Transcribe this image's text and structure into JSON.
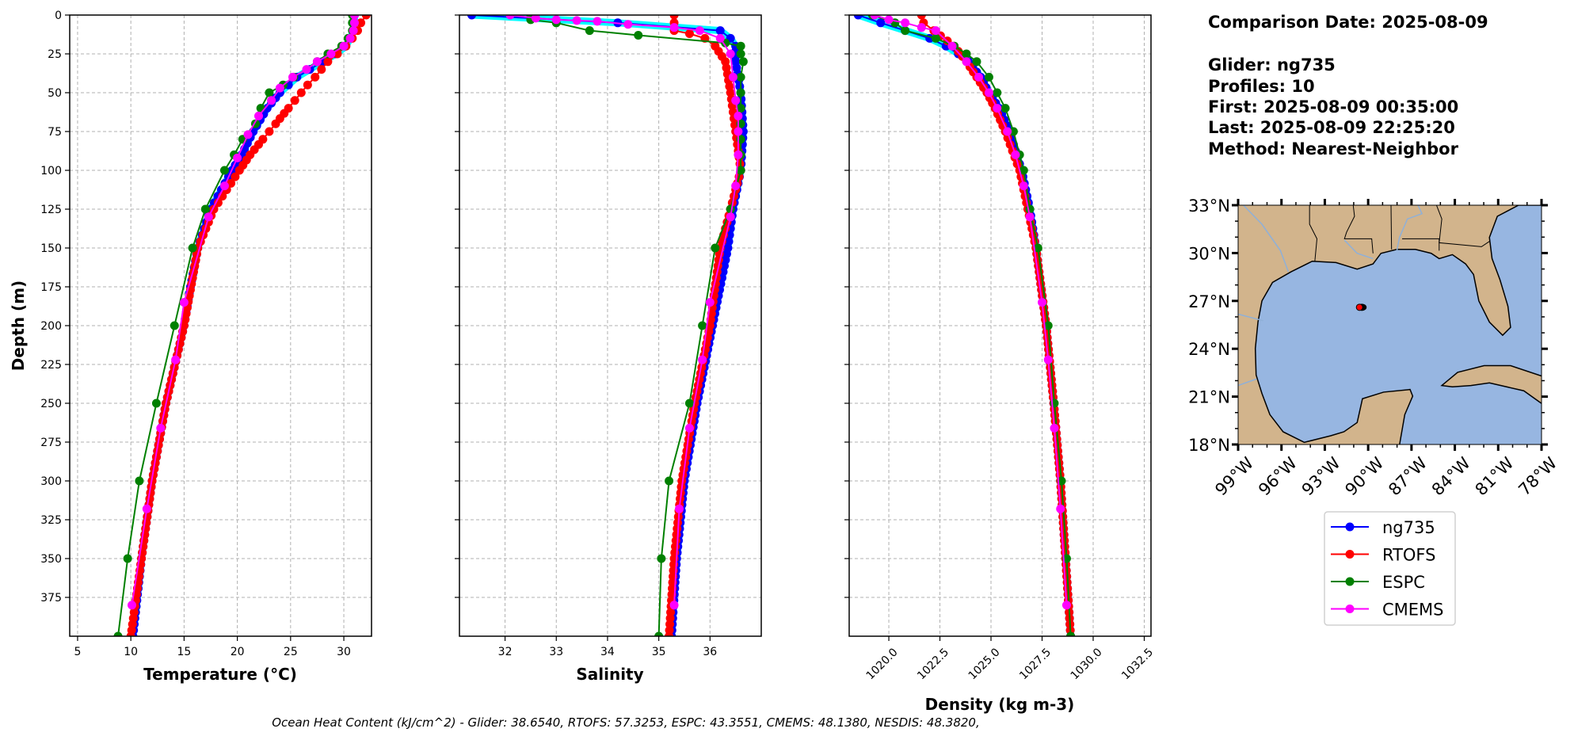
{
  "info": {
    "lines": [
      "Comparison Date: 2025-08-09",
      "",
      "Glider: ng735",
      "Profiles: 10",
      "First: 2025-08-09 00:35:00",
      "Last: 2025-08-09 22:25:20",
      "Method: Nearest-Neighbor"
    ]
  },
  "footer": "Ocean Heat Content (kJ/cm^2) - Glider: 38.6540,  RTOFS: 57.3253,  ESPC: 43.3551,  CMEMS: 48.1380,  NESDIS: 48.3820,",
  "legend": {
    "placement": "below-map"
  },
  "colors": {
    "ng735": "#0000ff",
    "ng735_profiles": "#00ffff",
    "RTOFS": "#ff0000",
    "ESPC": "#008000",
    "CMEMS": "#ff00ff",
    "land": "#d2b48c",
    "ocean": "#97b6e1",
    "grid": "#b0b0b0"
  },
  "chart_data": [
    {
      "type": "line",
      "title": "",
      "xlabel": "Temperature (°C)",
      "ylabel": "Depth (m)",
      "xlim": [
        4.26,
        32.6
      ],
      "ylim": [
        400,
        0
      ],
      "xticks": [
        5,
        10,
        15,
        20,
        25,
        30
      ],
      "xtick_labels": [
        "5",
        "10",
        "15",
        "20",
        "25",
        "30"
      ],
      "yticks": [
        0,
        25,
        50,
        75,
        100,
        125,
        150,
        175,
        200,
        225,
        250,
        275,
        300,
        325,
        350,
        375
      ],
      "ytick_labels": [
        "0",
        "25",
        "50",
        "75",
        "100",
        "125",
        "150",
        "175",
        "200",
        "225",
        "250",
        "275",
        "300",
        "325",
        "350",
        "375"
      ],
      "grid": true,
      "series": [
        {
          "name": "ng735",
          "color": "#0000ff",
          "depth": [
            0,
            5,
            10,
            15,
            20,
            25,
            30,
            35,
            40,
            45,
            50,
            60,
            75,
            90,
            100,
            125,
            150,
            175,
            200,
            250,
            300,
            350,
            400
          ],
          "values": [
            31.0,
            31.0,
            30.9,
            30.6,
            30.2,
            29.3,
            28.0,
            26.8,
            25.6,
            24.8,
            24.0,
            22.8,
            21.5,
            20.4,
            19.5,
            17.5,
            16.3,
            15.6,
            15.0,
            13.3,
            12.0,
            11.0,
            10.2
          ]
        },
        {
          "name": "RTOFS",
          "color": "#ff0000",
          "depth": [
            0,
            5,
            10,
            15,
            20,
            25,
            30,
            35,
            40,
            45,
            50,
            55,
            60,
            70,
            75,
            80,
            90,
            100,
            125,
            150,
            200,
            250,
            300,
            350,
            400
          ],
          "values": [
            32.1,
            31.6,
            31.3,
            30.8,
            30.2,
            29.4,
            28.5,
            27.9,
            27.3,
            26.6,
            26.0,
            25.4,
            24.8,
            23.6,
            23.0,
            22.4,
            21.2,
            20.2,
            17.8,
            16.3,
            15.0,
            13.3,
            12.0,
            11.0,
            10.0
          ]
        },
        {
          "name": "ESPC",
          "color": "#008000",
          "depth": [
            0,
            5,
            10,
            15,
            20,
            25,
            30,
            40,
            45,
            50,
            60,
            70,
            80,
            90,
            100,
            125,
            150,
            200,
            250,
            300,
            350,
            400
          ],
          "values": [
            30.8,
            30.8,
            30.8,
            30.4,
            29.8,
            28.5,
            27.5,
            25.3,
            24.3,
            23.0,
            22.2,
            21.7,
            20.5,
            19.7,
            18.8,
            17.0,
            15.8,
            14.1,
            12.4,
            10.8,
            9.7,
            8.8
          ]
        },
        {
          "name": "CMEMS",
          "color": "#ff00ff",
          "depth": [
            0,
            5,
            10,
            15,
            20,
            25,
            30,
            35,
            40,
            47,
            55,
            65,
            77,
            92,
            110,
            130,
            185,
            222,
            266,
            318,
            380
          ],
          "values": [
            31.0,
            31.0,
            30.9,
            30.6,
            30.0,
            28.8,
            27.5,
            26.5,
            25.2,
            24.0,
            23.2,
            22.0,
            21.0,
            20.0,
            18.8,
            17.3,
            15.0,
            14.2,
            12.8,
            11.5,
            10.1
          ]
        }
      ]
    },
    {
      "type": "line",
      "title": "",
      "xlabel": "Salinity",
      "ylabel": "",
      "xlim": [
        31.11,
        37.0
      ],
      "ylim": [
        400,
        0
      ],
      "xticks": [
        32,
        33,
        34,
        35,
        36
      ],
      "xtick_labels": [
        "32",
        "33",
        "34",
        "35",
        "36"
      ],
      "yticks": [
        0,
        25,
        50,
        75,
        100,
        125,
        150,
        175,
        200,
        225,
        250,
        275,
        300,
        325,
        350,
        375
      ],
      "grid": true,
      "series": [
        {
          "name": "ng735",
          "color": "#0000ff",
          "depth": [
            0,
            5,
            10,
            15,
            20,
            30,
            50,
            75,
            100,
            125,
            150,
            200,
            250,
            300,
            350,
            400
          ],
          "values": [
            31.35,
            34.2,
            36.2,
            36.4,
            36.5,
            36.5,
            36.6,
            36.65,
            36.6,
            36.45,
            36.35,
            36.05,
            35.75,
            35.5,
            35.35,
            35.25
          ]
        },
        {
          "name": "RTOFS",
          "color": "#ff0000",
          "depth": [
            0,
            5,
            10,
            12,
            15,
            20,
            30,
            50,
            75,
            100,
            125,
            150,
            200,
            250,
            300,
            350,
            400
          ],
          "values": [
            35.3,
            35.3,
            35.3,
            35.6,
            35.9,
            36.1,
            36.3,
            36.4,
            36.5,
            36.6,
            36.4,
            36.2,
            36.0,
            35.7,
            35.45,
            35.3,
            35.2
          ]
        },
        {
          "name": "ESPC",
          "color": "#008000",
          "depth": [
            0,
            3,
            5,
            10,
            13,
            18,
            20,
            25,
            30,
            40,
            50,
            60,
            70,
            80,
            90,
            100,
            125,
            150,
            200,
            250,
            300,
            350,
            400
          ],
          "values": [
            32.5,
            32.5,
            33.0,
            33.65,
            34.6,
            36.3,
            36.6,
            36.6,
            36.65,
            36.6,
            36.6,
            36.6,
            36.6,
            36.6,
            36.6,
            36.6,
            36.4,
            36.1,
            35.85,
            35.6,
            35.2,
            35.05,
            35.0
          ]
        },
        {
          "name": "CMEMS",
          "color": "#ff00ff",
          "depth": [
            0,
            2,
            3,
            3.5,
            4,
            6,
            8,
            10,
            15,
            25,
            40,
            55,
            65,
            75,
            90,
            110,
            130,
            185,
            222,
            266,
            318,
            380
          ],
          "values": [
            32.1,
            32.6,
            33.0,
            33.4,
            33.8,
            34.4,
            35.3,
            35.8,
            36.2,
            36.4,
            36.45,
            36.5,
            36.55,
            36.55,
            36.55,
            36.5,
            36.4,
            36.0,
            35.85,
            35.6,
            35.4,
            35.3
          ]
        }
      ]
    },
    {
      "type": "line",
      "title": "",
      "xlabel": "Density (kg m-3)",
      "ylabel": "",
      "xlim": [
        1018.06,
        1032.83
      ],
      "ylim": [
        400,
        0
      ],
      "xticks": [
        1020.0,
        1022.5,
        1025.0,
        1027.5,
        1030.0,
        1032.5
      ],
      "xtick_labels": [
        "1020.0",
        "1022.5",
        "1025.0",
        "1027.5",
        "1030.0",
        "1032.5"
      ],
      "yticks": [
        0,
        25,
        50,
        75,
        100,
        125,
        150,
        175,
        200,
        225,
        250,
        275,
        300,
        325,
        350,
        375
      ],
      "grid": true,
      "series": [
        {
          "name": "ng735",
          "color": "#0000ff",
          "depth": [
            0,
            5,
            10,
            15,
            20,
            25,
            30,
            40,
            50,
            60,
            75,
            100,
            125,
            150,
            200,
            250,
            300,
            350,
            400
          ],
          "values": [
            1018.5,
            1019.6,
            1020.8,
            1022.0,
            1022.8,
            1023.4,
            1023.9,
            1024.5,
            1024.9,
            1025.4,
            1025.9,
            1026.5,
            1026.9,
            1027.2,
            1027.7,
            1028.07,
            1028.4,
            1028.65,
            1028.9
          ]
        },
        {
          "name": "RTOFS",
          "color": "#ff0000",
          "depth": [
            0,
            5,
            10,
            20,
            30,
            40,
            50,
            60,
            75,
            100,
            125,
            150,
            200,
            250,
            300,
            350,
            400
          ],
          "values": [
            1021.6,
            1021.7,
            1022.2,
            1023.2,
            1023.8,
            1024.3,
            1024.8,
            1025.2,
            1025.7,
            1026.4,
            1026.8,
            1027.2,
            1027.7,
            1028.07,
            1028.4,
            1028.65,
            1028.9
          ]
        },
        {
          "name": "ESPC",
          "color": "#008000",
          "depth": [
            0,
            5,
            10,
            15,
            20,
            25,
            30,
            40,
            50,
            60,
            75,
            90,
            100,
            125,
            150,
            200,
            250,
            300,
            350,
            400
          ],
          "values": [
            1019.2,
            1020.3,
            1020.8,
            1022.3,
            1023.2,
            1023.8,
            1024.3,
            1024.9,
            1025.3,
            1025.7,
            1026.1,
            1026.4,
            1026.6,
            1026.9,
            1027.3,
            1027.8,
            1028.1,
            1028.45,
            1028.7,
            1028.9
          ]
        },
        {
          "name": "CMEMS",
          "color": "#ff00ff",
          "depth": [
            0,
            3,
            5,
            8,
            10,
            20,
            30,
            40,
            50,
            60,
            75,
            90,
            110,
            130,
            185,
            222,
            266,
            318,
            380
          ],
          "values": [
            1019.3,
            1020.0,
            1020.8,
            1021.6,
            1022.3,
            1023.1,
            1023.8,
            1024.4,
            1024.9,
            1025.3,
            1025.8,
            1026.2,
            1026.6,
            1026.9,
            1027.5,
            1027.8,
            1028.1,
            1028.4,
            1028.7
          ]
        }
      ]
    },
    {
      "type": "map",
      "lon_range": [
        -99,
        -78
      ],
      "lat_range": [
        18,
        33
      ],
      "lon_ticks": [
        -99,
        -96,
        -93,
        -90,
        -87,
        -84,
        -81,
        -78
      ],
      "lon_tick_labels": [
        "99°W",
        "96°W",
        "93°W",
        "90°W",
        "87°W",
        "84°W",
        "81°W",
        "78°W"
      ],
      "lat_ticks": [
        18,
        21,
        24,
        27,
        30,
        33
      ],
      "lat_tick_labels": [
        "18°N",
        "21°N",
        "24°N",
        "27°N",
        "30°N",
        "33°N"
      ],
      "glider_position": {
        "lon": -90.6,
        "lat": 26.6
      }
    }
  ]
}
